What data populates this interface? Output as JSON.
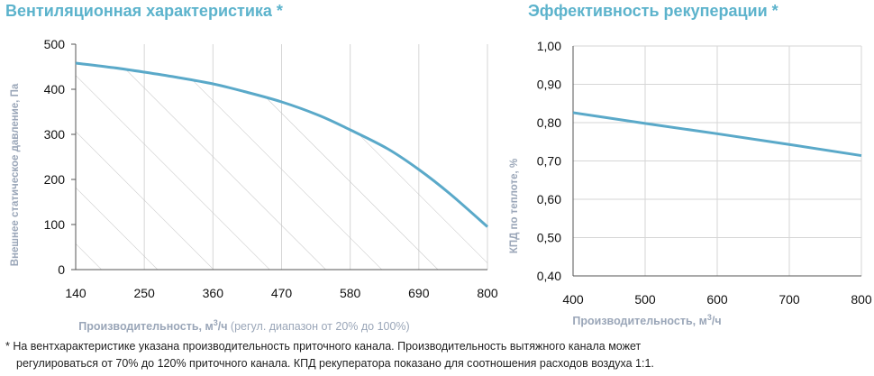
{
  "colors": {
    "title": "#5cb3cc",
    "axis_label": "#9aa6b8",
    "curve": "#5aa9c9",
    "grid": "#d6d6d6",
    "hatch": "#c4c4c4",
    "tick_text": "#111111"
  },
  "chart_data": [
    {
      "type": "line",
      "title": "Вентиляционная характеристика *",
      "xlabel_main": "Производительность, м³/ч",
      "xlabel_note": " (регул. диапазон от 20% до 100%)",
      "ylabel": "Внешнее статическое давление, Па",
      "xlim": [
        140,
        800
      ],
      "ylim": [
        0,
        500
      ],
      "x_ticks": [
        "140",
        "250",
        "360",
        "470",
        "580",
        "690",
        "800"
      ],
      "y_ticks": [
        "0",
        "100",
        "200",
        "300",
        "400",
        "500"
      ],
      "grid": "vertical",
      "hatched_area_under_curve": true,
      "series": [
        {
          "x": [
            140,
            200,
            250,
            300,
            360,
            410,
            470,
            530,
            580,
            640,
            690,
            740,
            800
          ],
          "y": [
            458,
            448,
            438,
            427,
            412,
            395,
            372,
            342,
            310,
            268,
            222,
            168,
            95
          ]
        }
      ]
    },
    {
      "type": "line",
      "title": "Эффективность рекуперации *",
      "xlabel_main": "Производительность, м³/ч",
      "xlabel_note": "",
      "ylabel": "КПД по теплоте, %",
      "xlim": [
        400,
        800
      ],
      "ylim": [
        0.4,
        1.0
      ],
      "x_ticks": [
        "400",
        "500",
        "600",
        "700",
        "800"
      ],
      "y_ticks": [
        "0,40",
        "0,50",
        "0,60",
        "0,70",
        "0,80",
        "0,90",
        "1,00"
      ],
      "grid": "both",
      "series": [
        {
          "x": [
            400,
            500,
            600,
            700,
            800
          ],
          "y": [
            0.826,
            0.798,
            0.771,
            0.743,
            0.714
          ]
        }
      ]
    }
  ],
  "footnote": {
    "line1": "* На вентхарактеристике указана производительность приточного канала. Производительность вытяжного канала может",
    "line2": "регулироваться от 70% до 120% приточного канала. КПД рекуператора показано для соотношения расходов воздуха 1:1."
  }
}
